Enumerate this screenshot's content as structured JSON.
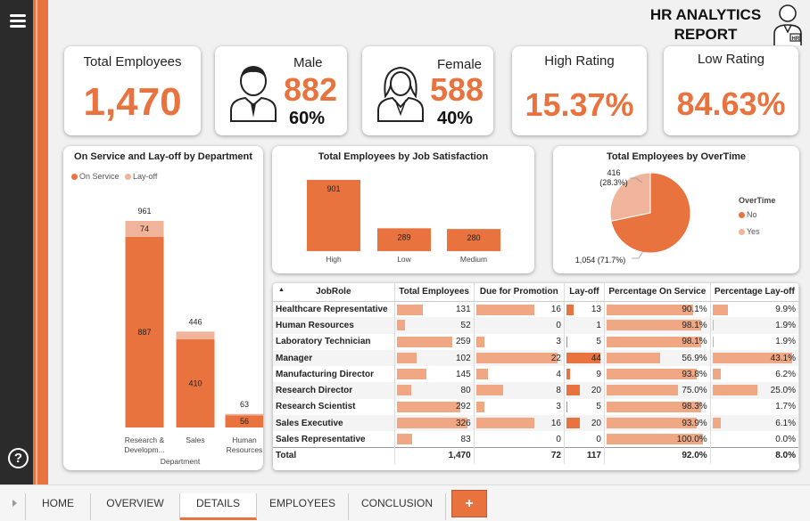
{
  "header": {
    "line1": "HR ANALYTICS",
    "line2": "REPORT"
  },
  "kpis": {
    "total": {
      "title": "Total Employees",
      "value": "1,470"
    },
    "male": {
      "title": "Male",
      "value": "882",
      "pct": "60%"
    },
    "female": {
      "title": "Female",
      "value": "588",
      "pct": "40%"
    },
    "high": {
      "title": "High Rating",
      "value": "15.37%"
    },
    "low": {
      "title": "Low Rating",
      "value": "84.63%"
    }
  },
  "colors": {
    "accent": "#e8733f",
    "light": "#f0b49b",
    "dark": "#2b2b2b"
  },
  "chart_data": [
    {
      "type": "bar",
      "title": "On Service and Lay-off by Department",
      "xlabel": "Department",
      "categories": [
        "Research & Developm...",
        "Sales",
        "Human Resources"
      ],
      "series": [
        {
          "name": "On Service",
          "values": [
            887,
            410,
            56
          ]
        },
        {
          "name": "Lay-off",
          "values": [
            74,
            36,
            7
          ]
        }
      ],
      "totals": [
        961,
        446,
        63
      ],
      "stacked": true
    },
    {
      "type": "bar",
      "title": "Total Employees by Job Satisfaction",
      "categories": [
        "High",
        "Low",
        "Medium"
      ],
      "values": [
        901,
        289,
        280
      ]
    },
    {
      "type": "pie",
      "title": "Total Employees by OverTime",
      "legend_title": "OverTime",
      "categories": [
        "No",
        "Yes"
      ],
      "values": [
        1054,
        416
      ],
      "labels": [
        "1,054 (71.7%)",
        "416\n(28.3%)"
      ]
    }
  ],
  "table": {
    "sort_icon": "sort-ascending-icon",
    "columns": [
      "JobRole",
      "Total Employees",
      "Due for Promotion",
      "Lay-off",
      "Percentage On Service",
      "Percentage Lay-off"
    ],
    "rows": [
      {
        "role": "Healthcare Representative",
        "total": "131",
        "promo": "16",
        "layoff": "13",
        "onservice": "90.1%",
        "pctlayoff": "9.9%"
      },
      {
        "role": "Human Resources",
        "total": "52",
        "promo": "0",
        "layoff": "1",
        "onservice": "98.1%",
        "pctlayoff": "1.9%"
      },
      {
        "role": "Laboratory Technician",
        "total": "259",
        "promo": "3",
        "layoff": "5",
        "onservice": "98.1%",
        "pctlayoff": "1.9%"
      },
      {
        "role": "Manager",
        "total": "102",
        "promo": "22",
        "layoff": "44",
        "onservice": "56.9%",
        "pctlayoff": "43.1%"
      },
      {
        "role": "Manufacturing Director",
        "total": "145",
        "promo": "4",
        "layoff": "9",
        "onservice": "93.8%",
        "pctlayoff": "6.2%"
      },
      {
        "role": "Research Director",
        "total": "80",
        "promo": "8",
        "layoff": "20",
        "onservice": "75.0%",
        "pctlayoff": "25.0%"
      },
      {
        "role": "Research Scientist",
        "total": "292",
        "promo": "3",
        "layoff": "5",
        "onservice": "98.3%",
        "pctlayoff": "1.7%"
      },
      {
        "role": "Sales Executive",
        "total": "326",
        "promo": "16",
        "layoff": "20",
        "onservice": "93.9%",
        "pctlayoff": "6.1%"
      },
      {
        "role": "Sales Representative",
        "total": "83",
        "promo": "0",
        "layoff": "0",
        "onservice": "100.0%",
        "pctlayoff": "0.0%"
      }
    ],
    "footer": {
      "role": "Total",
      "total": "1,470",
      "promo": "72",
      "layoff": "117",
      "onservice": "92.0%",
      "pctlayoff": "8.0%"
    }
  },
  "tabs": [
    "HOME",
    "OVERVIEW",
    "DETAILS",
    "EMPLOYEES",
    "CONCLUSION"
  ],
  "active_tab": "DETAILS",
  "add_tab_label": "+"
}
